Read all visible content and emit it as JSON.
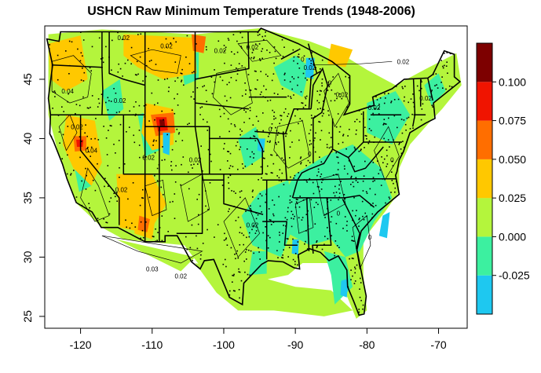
{
  "title": "USHCN Raw Minimum Temperature Trends (1948-2006)",
  "map": {
    "lon_range": [
      -125,
      -66
    ],
    "lat_range": [
      24,
      49.5
    ],
    "x_ticks": [
      -120,
      -110,
      -100,
      -90,
      -80,
      -70
    ],
    "y_ticks": [
      25,
      30,
      35,
      40,
      45
    ],
    "x_tick_labels": [
      "-120",
      "-110",
      "-100",
      "-90",
      "-80",
      "-70"
    ],
    "y_tick_labels": [
      "25",
      "30",
      "35",
      "40",
      "45"
    ],
    "contour_labels": [
      "0.02",
      "0.02",
      "0.02",
      "0.02",
      "0.04",
      "0.02",
      "0",
      "0",
      "0.02",
      "0.02",
      "0",
      "0.02",
      "0",
      "0.02",
      "0.02",
      "0.02",
      "0.04",
      "0.03",
      "0.02",
      "0.02",
      "0",
      "0.02",
      "0",
      "0.02",
      "0"
    ]
  },
  "colorbar": {
    "levels": [
      {
        "lo": -0.05,
        "hi": -0.025,
        "color": "#1ec8f0"
      },
      {
        "lo": -0.025,
        "hi": 0.0,
        "color": "#3cf0a0"
      },
      {
        "lo": 0.0,
        "hi": 0.025,
        "color": "#b4f53c"
      },
      {
        "lo": 0.025,
        "hi": 0.05,
        "color": "#ffc800"
      },
      {
        "lo": 0.05,
        "hi": 0.075,
        "color": "#ff6e00"
      },
      {
        "lo": 0.075,
        "hi": 0.1,
        "color": "#f01400"
      },
      {
        "lo": 0.1,
        "hi": 0.125,
        "color": "#7d0000"
      }
    ],
    "tick_labels": [
      "0.100",
      "0.075",
      "0.050",
      "0.025",
      "0.000",
      "-0.025"
    ],
    "tick_values": [
      0.1,
      0.075,
      0.05,
      0.025,
      0.0,
      -0.025
    ]
  }
}
